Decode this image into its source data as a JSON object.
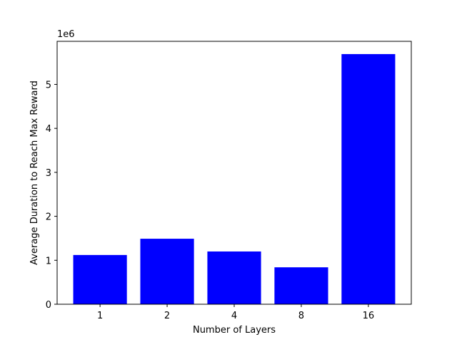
{
  "chart_data": {
    "type": "bar",
    "categories": [
      "1",
      "2",
      "4",
      "8",
      "16"
    ],
    "values": [
      1120000,
      1490000,
      1200000,
      840000,
      5690000
    ],
    "xlabel": "Number of Layers",
    "ylabel": "Average Duration to Reach Max Reward",
    "y_offset_label": "1e6",
    "y_scale_factor": 1000000,
    "yticks": [
      0,
      1,
      2,
      3,
      4,
      5
    ],
    "ylim": [
      0,
      5980000
    ],
    "bar_color": "#0000ff",
    "grid": false,
    "legend": "none"
  }
}
